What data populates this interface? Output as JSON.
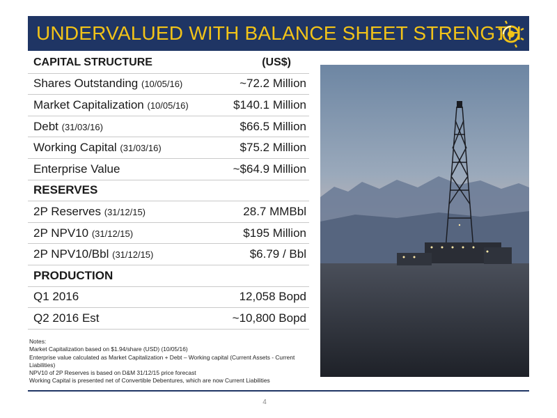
{
  "header": {
    "title": "UNDERVALUED WITH BALANCE SHEET STRENGTH"
  },
  "capital_structure": {
    "heading": "CAPITAL STRUCTURE",
    "unit": "(US$)",
    "rows": [
      {
        "label": "Shares Outstanding",
        "date": "(10/05/16)",
        "value": "~72.2 Million"
      },
      {
        "label": "Market Capitalization",
        "date": "(10/05/16)",
        "value": "$140.1 Million"
      },
      {
        "label": "Debt",
        "date": "(31/03/16)",
        "value": "$66.5 Million"
      },
      {
        "label": "Working Capital",
        "date": "(31/03/16)",
        "value": "$75.2 Million"
      },
      {
        "label": "Enterprise Value",
        "date": "",
        "value": "~$64.9 Million"
      }
    ]
  },
  "reserves": {
    "heading": "RESERVES",
    "rows": [
      {
        "label": "2P Reserves",
        "date": "(31/12/15)",
        "value": "28.7 MMBbl"
      },
      {
        "label": "2P NPV10",
        "date": "(31/12/15)",
        "value": "$195 Million"
      },
      {
        "label": "2P NPV10/Bbl",
        "date": "(31/12/15)",
        "value": "$6.79 / Bbl"
      }
    ]
  },
  "production": {
    "heading": "PRODUCTION",
    "rows": [
      {
        "label": "Q1 2016",
        "date": "",
        "value": "12,058 Bopd"
      },
      {
        "label": "Q2 2016 Est",
        "date": "",
        "value": "~10,800 Bopd"
      }
    ]
  },
  "notes": {
    "title": "Notes:",
    "lines": [
      "Market Capitalization based on $1.94/share (USD) (10/05/16)",
      "Enterprise value calculated as Market Capitalization + Debt – Working capital (Current Assets - Current Liabilities)",
      "NPV10 of 2P Reserves is based on D&M 31/12/15 price forecast",
      "Working Capital is presented net of Convertible Debentures, which are now Current Liabilities"
    ]
  },
  "page_number": "4",
  "colors": {
    "navy": "#1f3564",
    "gold": "#f2c318"
  },
  "icons": {
    "logo": "sun-logo-icon",
    "photo": "oil-rig-photo"
  }
}
